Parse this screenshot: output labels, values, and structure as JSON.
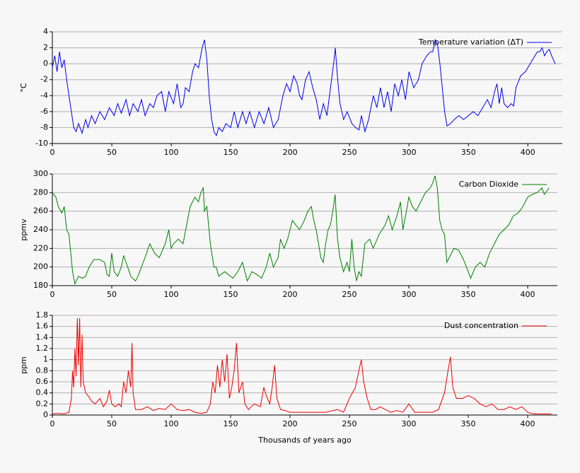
{
  "chart_data": [
    {
      "type": "line",
      "ylabel": "°C",
      "x": [
        0,
        2,
        4,
        6,
        8,
        10,
        12,
        14,
        16,
        18,
        20,
        22,
        25,
        28,
        30,
        33,
        36,
        40,
        44,
        48,
        52,
        55,
        58,
        62,
        65,
        68,
        72,
        75,
        78,
        82,
        85,
        88,
        92,
        95,
        98,
        102,
        105,
        108,
        110,
        112,
        115,
        118,
        120,
        123,
        126,
        128,
        130,
        132,
        134,
        136,
        138,
        140,
        143,
        146,
        150,
        153,
        156,
        160,
        163,
        166,
        170,
        174,
        178,
        182,
        186,
        190,
        194,
        197,
        200,
        203,
        206,
        208,
        210,
        213,
        216,
        219,
        222,
        225,
        228,
        231,
        234,
        237,
        238,
        240,
        242,
        245,
        248,
        252,
        255,
        258,
        260,
        263,
        266,
        270,
        273,
        276,
        279,
        282,
        285,
        288,
        291,
        294,
        297,
        300,
        304,
        308,
        311,
        315,
        318,
        320,
        322,
        324,
        326,
        328,
        330,
        332,
        335,
        338,
        342,
        346,
        350,
        354,
        358,
        362,
        366,
        369,
        372,
        374,
        376,
        378,
        380,
        383,
        386,
        388,
        390,
        394,
        398,
        402,
        406,
        408,
        410,
        412,
        414,
        416,
        418,
        420,
        423
      ],
      "series": [
        {
          "name": "Temperature variation (ΔT)",
          "color": "#0000ee",
          "values": [
            -0.5,
            1,
            -1,
            1.5,
            -0.5,
            0.5,
            -2,
            -4,
            -6,
            -8,
            -8.5,
            -7.5,
            -8.7,
            -7,
            -8,
            -6.5,
            -7.5,
            -6,
            -7,
            -5.5,
            -6.5,
            -5,
            -6.2,
            -4.5,
            -6.5,
            -5,
            -6,
            -4.5,
            -6.5,
            -5,
            -5.5,
            -4,
            -3.5,
            -6,
            -3.5,
            -5,
            -2.5,
            -5.5,
            -5,
            -3,
            -3.5,
            -1,
            0,
            -0.5,
            2,
            3,
            0.5,
            -4,
            -7,
            -8.5,
            -9,
            -8,
            -8.5,
            -7.5,
            -8,
            -6,
            -8,
            -6,
            -7.5,
            -6,
            -8,
            -6,
            -7.5,
            -5.5,
            -8,
            -7,
            -4,
            -2.5,
            -3.5,
            -1.5,
            -2.5,
            -4,
            -4.5,
            -2,
            -1,
            -3,
            -4.5,
            -7,
            -5,
            -6.5,
            -3,
            0.5,
            2,
            -2,
            -5,
            -7,
            -6,
            -7.5,
            -8,
            -8.3,
            -6.5,
            -8.5,
            -7,
            -4,
            -5.5,
            -3,
            -5.5,
            -3.5,
            -6,
            -2.5,
            -4,
            -2,
            -4.5,
            -1,
            -3,
            -2,
            0,
            1,
            1.5,
            1.5,
            3,
            2.5,
            0,
            -3,
            -6,
            -7.8,
            -7.5,
            -7,
            -6.5,
            -7,
            -6.5,
            -6,
            -6.5,
            -5.5,
            -4.5,
            -5.5,
            -3.5,
            -2.5,
            -5,
            -3,
            -5,
            -5.5,
            -5,
            -5.3,
            -3,
            -1.5,
            -1,
            0,
            1,
            1.5,
            1.5,
            2,
            1,
            1.5,
            1.8,
            1,
            0
          ]
        }
      ],
      "xlim": [
        0,
        429
      ],
      "xticks": [
        0,
        50,
        100,
        150,
        200,
        250,
        300,
        350,
        400
      ],
      "ylim": [
        -10,
        4
      ],
      "yticks": [
        -10,
        -8,
        -6,
        -4,
        -2,
        0,
        2,
        4
      ],
      "grid": true,
      "legend": "upper right"
    },
    {
      "type": "line",
      "ylabel": "ppmv",
      "x": [
        0,
        3,
        5,
        8,
        10,
        12,
        14,
        17,
        19,
        22,
        25,
        28,
        31,
        35,
        40,
        44,
        46,
        48,
        50,
        52,
        55,
        58,
        60,
        62,
        66,
        70,
        72,
        78,
        82,
        86,
        90,
        95,
        98,
        100,
        102,
        106,
        110,
        113,
        116,
        120,
        123,
        125,
        127,
        128,
        130,
        133,
        136,
        138,
        140,
        145,
        148,
        152,
        156,
        160,
        164,
        168,
        172,
        176,
        180,
        183,
        186,
        190,
        192,
        195,
        198,
        200,
        202,
        205,
        208,
        212,
        215,
        218,
        220,
        222,
        224,
        226,
        228,
        230,
        232,
        234,
        236,
        238,
        240,
        242,
        245,
        248,
        250,
        252,
        254,
        256,
        258,
        260,
        263,
        267,
        270,
        275,
        280,
        283,
        286,
        290,
        293,
        295,
        298,
        300,
        303,
        306,
        310,
        314,
        318,
        320,
        322,
        324,
        326,
        328,
        330,
        332,
        334,
        338,
        342,
        346,
        350,
        352,
        356,
        360,
        364,
        368,
        372,
        376,
        380,
        384,
        388,
        392,
        396,
        400,
        404,
        408,
        412,
        414,
        418
      ],
      "series": [
        {
          "name": "Carbon Dioxide",
          "color": "#008000",
          "values": [
            280,
            275,
            265,
            258,
            265,
            240,
            235,
            195,
            182,
            190,
            188,
            190,
            200,
            208,
            208,
            205,
            192,
            190,
            215,
            195,
            190,
            200,
            212,
            205,
            190,
            185,
            190,
            210,
            225,
            215,
            210,
            225,
            240,
            220,
            225,
            230,
            225,
            245,
            265,
            275,
            270,
            280,
            285,
            260,
            265,
            225,
            200,
            200,
            190,
            195,
            192,
            188,
            195,
            205,
            185,
            195,
            192,
            188,
            200,
            215,
            200,
            210,
            230,
            220,
            230,
            240,
            250,
            245,
            240,
            250,
            260,
            265,
            250,
            240,
            225,
            210,
            205,
            225,
            240,
            245,
            260,
            278,
            230,
            210,
            195,
            205,
            195,
            230,
            200,
            185,
            195,
            190,
            225,
            230,
            220,
            235,
            245,
            255,
            240,
            255,
            270,
            240,
            260,
            275,
            265,
            260,
            270,
            280,
            285,
            290,
            298,
            285,
            250,
            240,
            235,
            205,
            210,
            220,
            218,
            208,
            195,
            188,
            200,
            205,
            200,
            215,
            225,
            235,
            240,
            245,
            255,
            258,
            265,
            275,
            278,
            280,
            285,
            278,
            285
          ]
        }
      ],
      "xlim": [
        0,
        425
      ],
      "xticks": [
        0,
        50,
        100,
        150,
        200,
        250,
        300,
        350,
        400
      ],
      "ylim": [
        180,
        300
      ],
      "yticks": [
        180,
        200,
        220,
        240,
        260,
        280,
        300
      ],
      "grid": true,
      "legend": "upper right"
    },
    {
      "type": "line",
      "ylabel": "ppm",
      "xlabel": "Thousands of years ago",
      "x": [
        0,
        5,
        10,
        14,
        16,
        17,
        18,
        19,
        20,
        21,
        22,
        23,
        24,
        25,
        26,
        28,
        30,
        33,
        36,
        40,
        43,
        46,
        48,
        50,
        53,
        56,
        58,
        60,
        62,
        64,
        66,
        67,
        68,
        70,
        75,
        80,
        85,
        90,
        95,
        100,
        105,
        110,
        115,
        120,
        125,
        130,
        133,
        135,
        137,
        139,
        141,
        143,
        145,
        147,
        149,
        151,
        153,
        155,
        157,
        160,
        162,
        165,
        170,
        175,
        178,
        180,
        183,
        185,
        187,
        189,
        192,
        196,
        200,
        210,
        220,
        230,
        240,
        245,
        250,
        255,
        258,
        260,
        262,
        265,
        268,
        272,
        276,
        280,
        285,
        290,
        295,
        300,
        305,
        310,
        315,
        320,
        325,
        330,
        333,
        335,
        337,
        340,
        345,
        350,
        355,
        360,
        365,
        370,
        375,
        380,
        385,
        390,
        395,
        400,
        405,
        410,
        420
      ],
      "series": [
        {
          "name": "Dust concentration",
          "color": "#ee0000",
          "values": [
            0.02,
            0.03,
            0.02,
            0.05,
            0.3,
            0.8,
            0.5,
            1.2,
            0.7,
            1.75,
            0.9,
            1.75,
            0.5,
            1.45,
            0.6,
            0.4,
            0.35,
            0.25,
            0.2,
            0.3,
            0.15,
            0.25,
            0.45,
            0.2,
            0.15,
            0.2,
            0.15,
            0.6,
            0.4,
            0.8,
            0.5,
            1.3,
            0.4,
            0.1,
            0.1,
            0.15,
            0.08,
            0.12,
            0.1,
            0.2,
            0.1,
            0.08,
            0.1,
            0.05,
            0.03,
            0.05,
            0.2,
            0.6,
            0.4,
            0.9,
            0.5,
            1.0,
            0.6,
            1.1,
            0.3,
            0.5,
            0.8,
            1.3,
            0.4,
            0.6,
            0.2,
            0.1,
            0.2,
            0.15,
            0.5,
            0.35,
            0.2,
            0.5,
            0.9,
            0.3,
            0.1,
            0.08,
            0.05,
            0.05,
            0.05,
            0.05,
            0.1,
            0.05,
            0.3,
            0.5,
            0.8,
            1.0,
            0.6,
            0.3,
            0.1,
            0.1,
            0.15,
            0.1,
            0.05,
            0.08,
            0.05,
            0.2,
            0.05,
            0.05,
            0.05,
            0.05,
            0.1,
            0.4,
            0.8,
            1.05,
            0.5,
            0.3,
            0.3,
            0.35,
            0.3,
            0.2,
            0.15,
            0.2,
            0.1,
            0.1,
            0.15,
            0.1,
            0.15,
            0.05,
            0.02,
            0.02,
            0.02
          ]
        }
      ],
      "xlim": [
        0,
        425
      ],
      "xticks": [
        0,
        50,
        100,
        150,
        200,
        250,
        300,
        350,
        400
      ],
      "ylim": [
        0,
        1.8
      ],
      "yticks": [
        0,
        0.2,
        0.4,
        0.6,
        0.8,
        1,
        1.2,
        1.4,
        1.6,
        1.8
      ],
      "grid": true,
      "legend": "upper right"
    }
  ]
}
